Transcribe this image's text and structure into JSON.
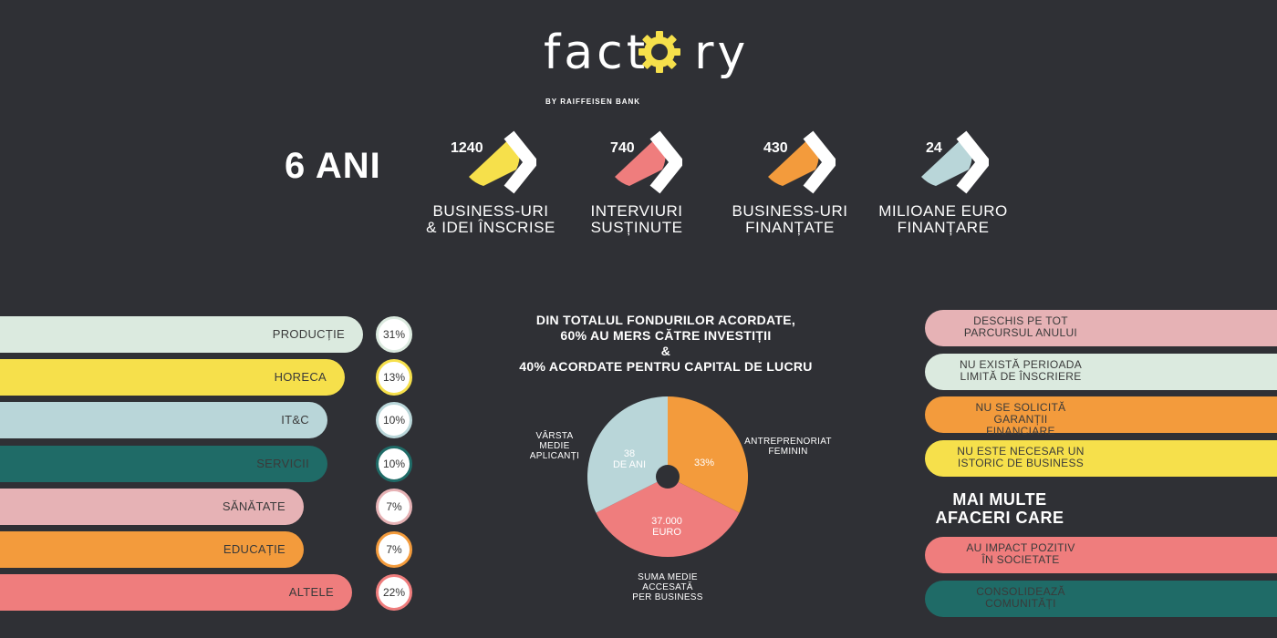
{
  "logo": {
    "word_a": "fact",
    "word_b": "ry",
    "sub": "BY RAIFFEISEN BANK"
  },
  "years": "6 ANI",
  "stats": [
    {
      "num": "1240",
      "caption_1": "BUSINESS-URI",
      "caption_2": "& IDEI ÎNSCRISE",
      "color": "#f6e04b"
    },
    {
      "num": "740",
      "caption_1": "INTERVIURI",
      "caption_2": "SUSȚINUTE",
      "color": "#ef7d7d"
    },
    {
      "num": "430",
      "caption_1": "BUSINESS-URI",
      "caption_2": "FINANȚATE",
      "color": "#f39b3c"
    },
    {
      "num": "24",
      "caption_1": "MILIOANE EURO",
      "caption_2": "FINANȚARE",
      "color": "#b9d6d9"
    }
  ],
  "sectors": [
    {
      "label": "PRODUCȚIE",
      "pct": "31%",
      "color": "#dbeadf"
    },
    {
      "label": "HORECA",
      "pct": "13%",
      "color": "#f6e04b"
    },
    {
      "label": "IT&C",
      "pct": "10%",
      "color": "#b9d6d9"
    },
    {
      "label": "SERVICII",
      "pct": "10%",
      "color": "#1f6b67"
    },
    {
      "label": "SĂNĂTATE",
      "pct": "7%",
      "color": "#e6b2b5"
    },
    {
      "label": "EDUCAȚIE",
      "pct": "7%",
      "color": "#f39b3c"
    },
    {
      "label": "ALTELE",
      "pct": "22%",
      "color": "#ef7d7d"
    }
  ],
  "headline": {
    "line1": "DIN TOTALUL FONDURILOR ACORDATE,",
    "line2": "60% AU MERS CĂTRE INVESTIȚII",
    "line3": "&",
    "line4": "40% ACORDATE PENTRU CAPITAL DE LUCRU"
  },
  "pie": {
    "age_value_1": "38",
    "age_value_2": "DE ANI",
    "age_label_1": "VÂRSTA",
    "age_label_2": "MEDIE",
    "age_label_3": "APLICANȚI",
    "fem_value": "33%",
    "fem_label_1": "ANTREPRENORIAT",
    "fem_label_2": "FEMININ",
    "sum_value_1": "37.000",
    "sum_value_2": "EURO",
    "sum_label_1": "SUMA MEDIE",
    "sum_label_2": "ACCESATĂ",
    "sum_label_3": "PER BUSINESS",
    "colors": {
      "age": "#b9d6d9",
      "fem": "#f39b3c",
      "sum": "#ef7d7d"
    }
  },
  "features": [
    {
      "l1": "DESCHIS PE TOT",
      "l2": "PARCURSUL ANULUI",
      "color": "#e6b2b5"
    },
    {
      "l1": "NU EXISTĂ PERIOADA",
      "l2": "LIMITĂ DE ÎNSCRIERE",
      "color": "#dbeadf"
    },
    {
      "l1": "NU SE SOLICITĂ GARANȚII",
      "l2": "FINANCIARE",
      "color": "#f39b3c"
    },
    {
      "l1": "NU ESTE NECESAR UN",
      "l2": "ISTORIC DE BUSINESS",
      "color": "#f6e04b"
    }
  ],
  "more": {
    "l1": "MAI MULTE",
    "l2": "AFACERI CARE"
  },
  "impact": [
    {
      "l1": "AU IMPACT POZITIV",
      "l2": "ÎN SOCIETATE",
      "color": "#ef7d7d"
    },
    {
      "l1": "CONSOLIDEAZĂ",
      "l2": "COMUNITĂȚI",
      "color": "#1f6b67"
    }
  ]
}
